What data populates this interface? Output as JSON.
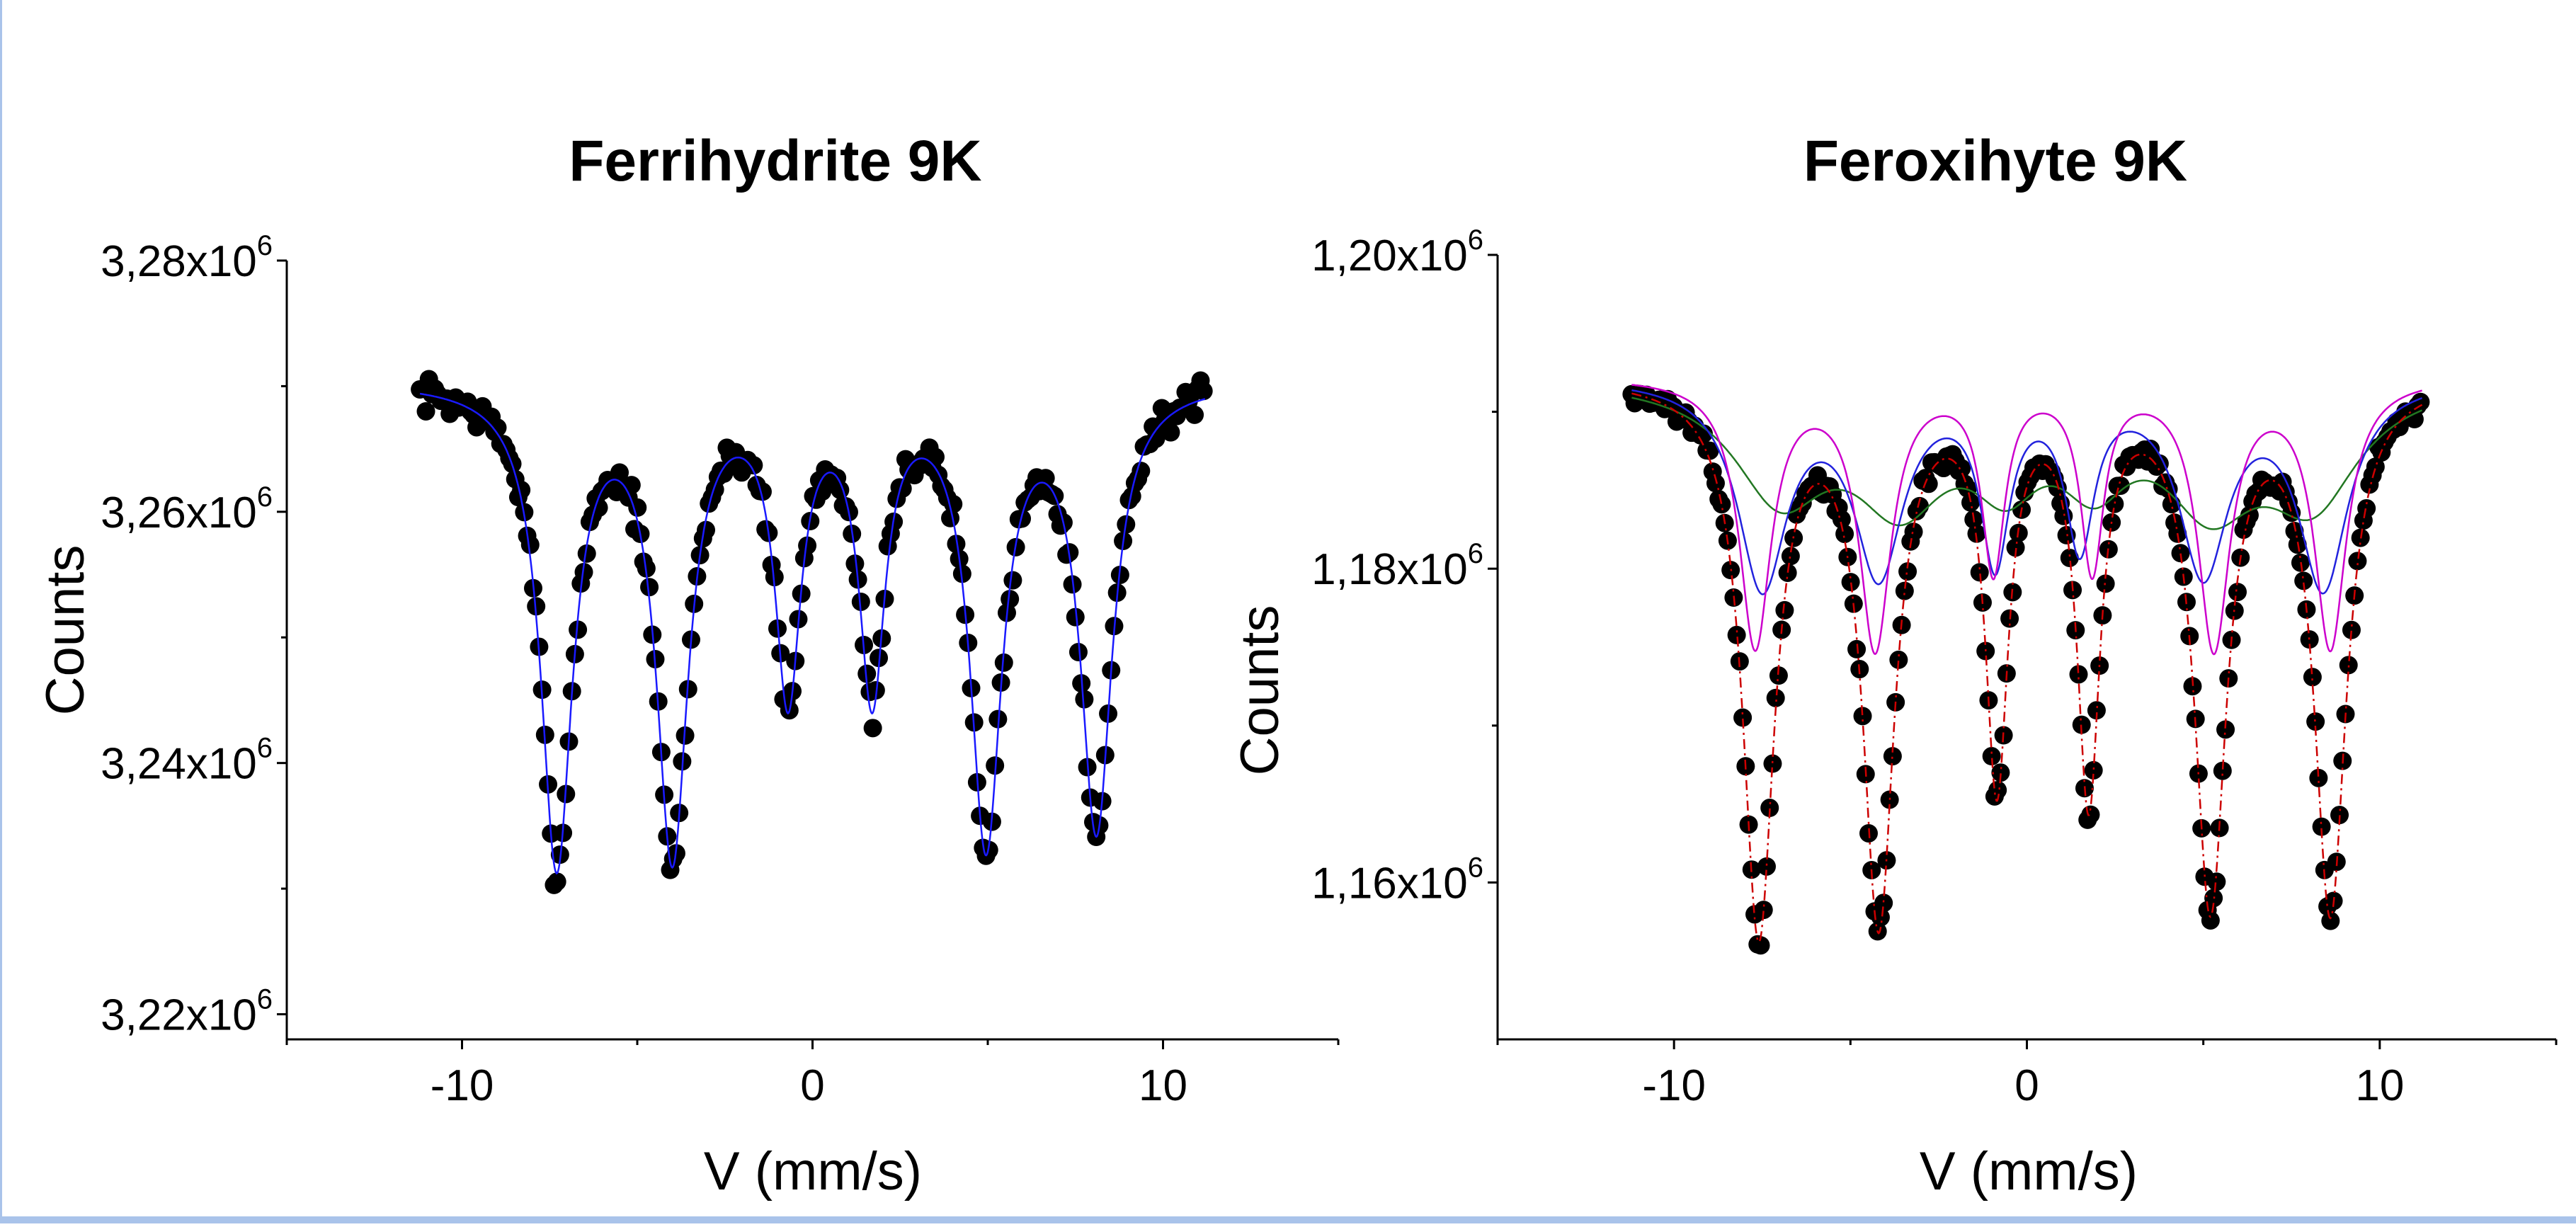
{
  "chart_data": [
    {
      "type": "scatter",
      "title": "Ferrihydrite 9K",
      "xlabel": "V (mm/s)",
      "ylabel": "Counts",
      "xlim": [
        -15,
        15
      ],
      "ylim": [
        3218000,
        3280000
      ],
      "xticks": [
        -10,
        0,
        10
      ],
      "xtick_labels": [
        "-10",
        "0",
        "10"
      ],
      "yticks": [
        3220000,
        3240000,
        3260000,
        3280000
      ],
      "ytick_labels": [
        {
          "base": "3,22x10",
          "exp": "6"
        },
        {
          "base": "3,24x10",
          "exp": "6"
        },
        {
          "base": "3,26x10",
          "exp": "6"
        },
        {
          "base": "3,28x10",
          "exp": "6"
        }
      ],
      "baseline": 3270500,
      "fit_color": "#1a1aff",
      "marker_color": "#000000",
      "series": [
        {
          "kind": "fit",
          "lines": [
            {
              "pos": -7.3,
              "depth": 38000,
              "width": 0.55
            },
            {
              "pos": -4.0,
              "depth": 37000,
              "width": 0.55
            },
            {
              "pos": -0.7,
              "depth": 24000,
              "width": 0.45
            },
            {
              "pos": 1.7,
              "depth": 24000,
              "width": 0.45
            },
            {
              "pos": 4.95,
              "depth": 36000,
              "width": 0.55
            },
            {
              "pos": 8.1,
              "depth": 35000,
              "width": 0.55
            }
          ]
        }
      ]
    },
    {
      "type": "scatter",
      "title": "Feroxihyte 9K",
      "xlabel": "V (mm/s)",
      "ylabel": "Counts",
      "xlim": [
        -15,
        15
      ],
      "ylim": [
        1150000,
        1200000
      ],
      "xticks": [
        -10,
        0,
        10
      ],
      "xtick_labels": [
        "-10",
        "0",
        "10"
      ],
      "yticks": [
        1160000,
        1180000,
        1200000
      ],
      "ytick_labels": [
        {
          "base": "1,16x10",
          "exp": "6"
        },
        {
          "base": "1,18x10",
          "exp": "6"
        },
        {
          "base": "1,20x10",
          "exp": "6"
        }
      ],
      "baseline": 1192300,
      "marker_color": "#000000",
      "series": [
        {
          "kind": "total-fit",
          "color": "#cc0000",
          "dash": "dash-dot",
          "lines": [
            {
              "pos": -7.6,
              "depth": 35000,
              "width": 0.55
            },
            {
              "pos": -4.2,
              "depth": 34000,
              "width": 0.55
            },
            {
              "pos": -0.85,
              "depth": 25000,
              "width": 0.4
            },
            {
              "pos": 1.75,
              "depth": 26000,
              "width": 0.4
            },
            {
              "pos": 5.2,
              "depth": 33000,
              "width": 0.55
            },
            {
              "pos": 8.6,
              "depth": 33500,
              "width": 0.55
            }
          ]
        },
        {
          "kind": "component",
          "color": "#cc00cc",
          "lines": [
            {
              "pos": -7.7,
              "depth": 17000,
              "width": 0.55
            },
            {
              "pos": -4.3,
              "depth": 17000,
              "width": 0.55
            },
            {
              "pos": -0.95,
              "depth": 12000,
              "width": 0.4
            },
            {
              "pos": 1.85,
              "depth": 12000,
              "width": 0.4
            },
            {
              "pos": 5.3,
              "depth": 17000,
              "width": 0.55
            },
            {
              "pos": 8.6,
              "depth": 17000,
              "width": 0.55
            }
          ]
        },
        {
          "kind": "component",
          "color": "#2222dd",
          "lines": [
            {
              "pos": -7.5,
              "depth": 13000,
              "width": 0.85
            },
            {
              "pos": -4.2,
              "depth": 12000,
              "width": 0.85
            },
            {
              "pos": -0.9,
              "depth": 11000,
              "width": 0.5
            },
            {
              "pos": 1.5,
              "depth": 10000,
              "width": 0.5
            },
            {
              "pos": 5.0,
              "depth": 12000,
              "width": 0.85
            },
            {
              "pos": 8.4,
              "depth": 13000,
              "width": 0.85
            }
          ]
        },
        {
          "kind": "component",
          "color": "#227722",
          "lines": [
            {
              "pos": -7.0,
              "depth": 7000,
              "width": 1.6
            },
            {
              "pos": -3.6,
              "depth": 7000,
              "width": 1.6
            },
            {
              "pos": -0.6,
              "depth": 5000,
              "width": 1.2
            },
            {
              "pos": 1.9,
              "depth": 5000,
              "width": 1.2
            },
            {
              "pos": 5.2,
              "depth": 7000,
              "width": 1.6
            },
            {
              "pos": 8.1,
              "depth": 7000,
              "width": 1.6
            }
          ]
        }
      ]
    }
  ]
}
